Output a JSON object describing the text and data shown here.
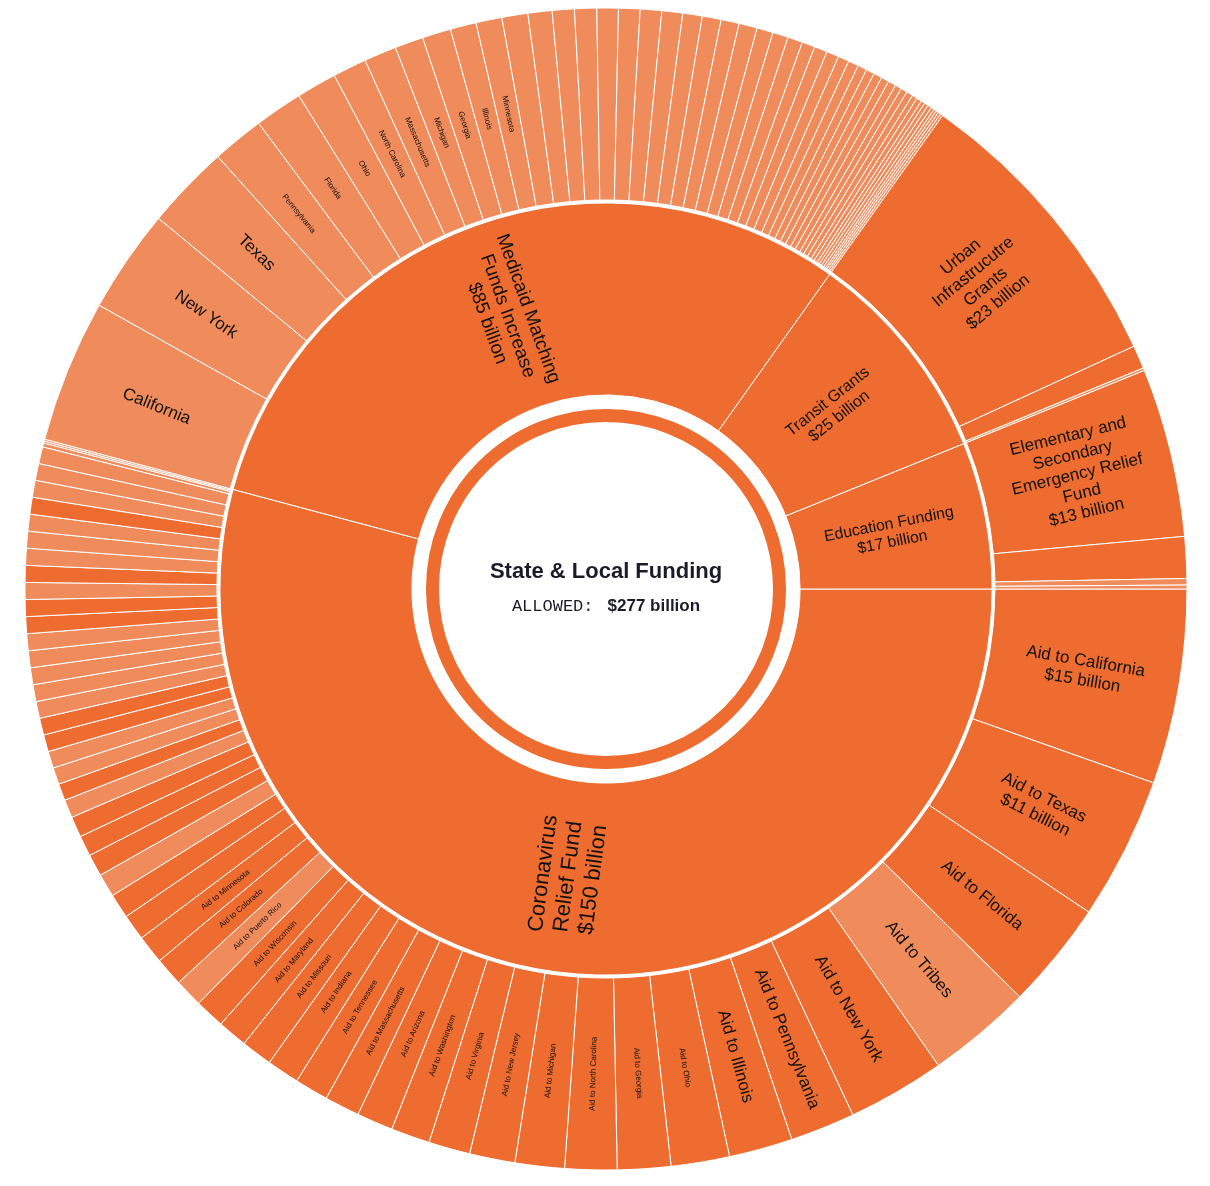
{
  "chart_data": [
    {
      "type": "donut",
      "title": "State & Local Funding",
      "subtitle": "ALLOWED:",
      "annotations": [
        "$277 billion"
      ],
      "categories": [
        "Coronavirus Relief Fund",
        "Medicaid Matching Funds Increase",
        "Transit Grants",
        "Education Funding"
      ],
      "values": [
        150,
        85,
        25,
        17
      ],
      "value_labels": [
        "$150 billion",
        "$85 billion",
        "$25 billion",
        "$17 billion"
      ],
      "colors": [
        "#ee6c30",
        "#ee6c30",
        "#ee6c30",
        "#ee6c30"
      ]
    },
    {
      "type": "donut",
      "categories": [
        "Aid to California",
        "Aid to Texas",
        "Aid to Florida",
        "Aid to Tribes",
        "Aid to New York",
        "Aid to Pennsylvania",
        "Aid to Illinois",
        "Aid to Ohio",
        "Aid to Georgia",
        "Aid to North Carolina",
        "Aid to Michigan",
        "Aid to New Jersey",
        "Aid to Virginia",
        "Aid to Washington",
        "Aid to Arizona",
        "Aid to Massachusetts",
        "Aid to Tennessee",
        "Aid to Indiana",
        "Aid to Missouri",
        "Aid to Maryland",
        "Aid to Wisconsin",
        "Aid to Puerto Rico",
        "Aid to Colorado",
        "Aid to Minnesota",
        null,
        null,
        null,
        null,
        null,
        null,
        null,
        null,
        null,
        null,
        null,
        null,
        null,
        null,
        null,
        null,
        null,
        null,
        null,
        null,
        null,
        null,
        null,
        null,
        null,
        null,
        null,
        null,
        null,
        null,
        null,
        "California",
        "New York",
        "Texas",
        "Pennsylvania",
        "Florida",
        "Ohio",
        "North Carolina",
        "Massachusetts",
        "Michigan",
        "Georgia",
        "Illinois",
        "Minnesota",
        null,
        null,
        null,
        null,
        null,
        null,
        null,
        null,
        null,
        null,
        null,
        null,
        null,
        null,
        null,
        null,
        null,
        null,
        null,
        null,
        null,
        null,
        null,
        null,
        null,
        null,
        null,
        null,
        null,
        null,
        null,
        null,
        null,
        null,
        null,
        null,
        null,
        null,
        "Urban Infrastrucutre Grants",
        null,
        null,
        "Elementary and Secondary Emergency Relief Fund",
        null,
        null,
        null
      ],
      "values": [
        15,
        11,
        8.3,
        8.1,
        7.5,
        5.0,
        4.9,
        4.5,
        4.1,
        4.0,
        3.8,
        3.5,
        3.2,
        3.0,
        2.8,
        2.7,
        2.6,
        2.5,
        2.4,
        2.3,
        2.3,
        2.2,
        2.2,
        2.2,
        2.0,
        1.9,
        1.8,
        1.7,
        1.6,
        1.6,
        1.4,
        1.3,
        1.3,
        1.3,
        1.3,
        1.3,
        1.3,
        1.3,
        1.3,
        1.3,
        1.3,
        1.3,
        1.3,
        1.3,
        1.3,
        1.3,
        1.3,
        1.3,
        1.3,
        1.3,
        1.3,
        1.3,
        0.3,
        0.15,
        0.15,
        11.0,
        8.0,
        6.5,
        4.0,
        3.7,
        3.1,
        2.6,
        2.5,
        2.2,
        2.2,
        2.0,
        2.0,
        2.0,
        1.85,
        1.7,
        1.7,
        1.65,
        1.65,
        1.65,
        1.6,
        1.5,
        1.45,
        1.4,
        1.4,
        1.25,
        1.2,
        1.15,
        1.0,
        1.0,
        0.95,
        0.85,
        0.8,
        0.7,
        0.65,
        0.65,
        0.6,
        0.6,
        0.5,
        0.5,
        0.5,
        0.4,
        0.4,
        0.3,
        0.3,
        0.3,
        0.25,
        0.2,
        0.2,
        0.2,
        0.2,
        23,
        1.8,
        0.2,
        13,
        3.2,
        0.5,
        0.3
      ],
      "value_labels": [
        "$15 billion",
        "$11 billion",
        null,
        null,
        null,
        null,
        null,
        null,
        null,
        null,
        null,
        null,
        null,
        null,
        null,
        null,
        null,
        null,
        null,
        null,
        null,
        null,
        null,
        null,
        null,
        null,
        null,
        null,
        null,
        null,
        null,
        null,
        null,
        null,
        null,
        null,
        null,
        null,
        null,
        null,
        null,
        null,
        null,
        null,
        null,
        null,
        null,
        null,
        null,
        null,
        null,
        null,
        null,
        null,
        null,
        null,
        null,
        null,
        null,
        null,
        null,
        null,
        null,
        null,
        null,
        null,
        null,
        null,
        null,
        null,
        null,
        null,
        null,
        null,
        null,
        null,
        null,
        null,
        null,
        null,
        null,
        null,
        null,
        null,
        null,
        null,
        null,
        null,
        null,
        null,
        null,
        null,
        null,
        null,
        null,
        null,
        null,
        null,
        null,
        null,
        null,
        null,
        null,
        null,
        null,
        "$23 billion",
        null,
        null,
        "$13 billion",
        null,
        null,
        null
      ],
      "colors": [
        "#ee6c30",
        "#ee6c30",
        "#ee6c30",
        "#f08b5c",
        "#ee6c30",
        "#ee6c30",
        "#ee6c30",
        "#ee6c30",
        "#ee6c30",
        "#ee6c30",
        "#ee6c30",
        "#ee6c30",
        "#ee6c30",
        "#ee6c30",
        "#ee6c30",
        "#ee6c30",
        "#ee6c30",
        "#ee6c30",
        "#ee6c30",
        "#ee6c30",
        "#ee6c30",
        "#f08b5c",
        "#ee6c30",
        "#ee6c30",
        "#ee6c30",
        "#ee6c30",
        "#f08b5c",
        "#ee6c30",
        "#ee6c30",
        "#ee6c30",
        "#f08b5c",
        "#ee6c30",
        "#f08b5c",
        "#f08b5c",
        "#ee6c30",
        "#ee6c30",
        "#f08b5c",
        "#f08b5c",
        "#f08b5c",
        "#f08b5c",
        "#f08b5c",
        "#ee6c30",
        "#ee6c30",
        "#f08b5c",
        "#ee6c30",
        "#f08b5c",
        "#f08b5c",
        "#f08b5c",
        "#ee6c30",
        "#f08b5c",
        "#f08b5c",
        "#f08b5c",
        "#f08b5c",
        "#f08b5c",
        "#f08b5c",
        "#f08b5c",
        "#f08b5c",
        "#f08b5c",
        "#f08b5c",
        "#f08b5c",
        "#f08b5c",
        "#f08b5c",
        "#f08b5c",
        "#f08b5c",
        "#f08b5c",
        "#f08b5c",
        "#f08b5c",
        "#f08b5c",
        "#f08b5c",
        "#f08b5c",
        "#f08b5c",
        "#f08b5c",
        "#f08b5c",
        "#f08b5c",
        "#f08b5c",
        "#f08b5c",
        "#f08b5c",
        "#f08b5c",
        "#f08b5c",
        "#f08b5c",
        "#f08b5c",
        "#f08b5c",
        "#f08b5c",
        "#f08b5c",
        "#f08b5c",
        "#f08b5c",
        "#f08b5c",
        "#f08b5c",
        "#f08b5c",
        "#f08b5c",
        "#f08b5c",
        "#f08b5c",
        "#f08b5c",
        "#f08b5c",
        "#f08b5c",
        "#f08b5c",
        "#f08b5c",
        "#f08b5c",
        "#f08b5c",
        "#f08b5c",
        "#f08b5c",
        "#f08b5c",
        "#f08b5c",
        "#f08b5c",
        "#f08b5c",
        "#ee6c30",
        "#ee6c30",
        "#f08b5c",
        "#ee6c30",
        "#ee6c30",
        "#f08b5c",
        "#f08b5c"
      ]
    }
  ]
}
